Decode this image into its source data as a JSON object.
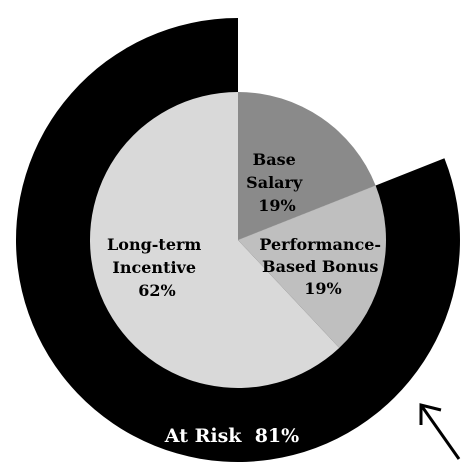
{
  "chart_data": {
    "type": "pie",
    "slices": [
      {
        "lines": [
          "Base",
          "Salary",
          "19%"
        ],
        "value": 19,
        "color": "#8a8a8a"
      },
      {
        "lines": [
          "Performance-",
          "Based Bonus",
          "19%"
        ],
        "value": 19,
        "color": "#bfbfbf"
      },
      {
        "lines": [
          "Long-term",
          "Incentive",
          "62%"
        ],
        "value": 62,
        "color": "#d9d9d9"
      }
    ],
    "ring": {
      "text": "At Risk  81%",
      "value": 81,
      "color": "#000000"
    },
    "arrow_color": "#000000"
  }
}
